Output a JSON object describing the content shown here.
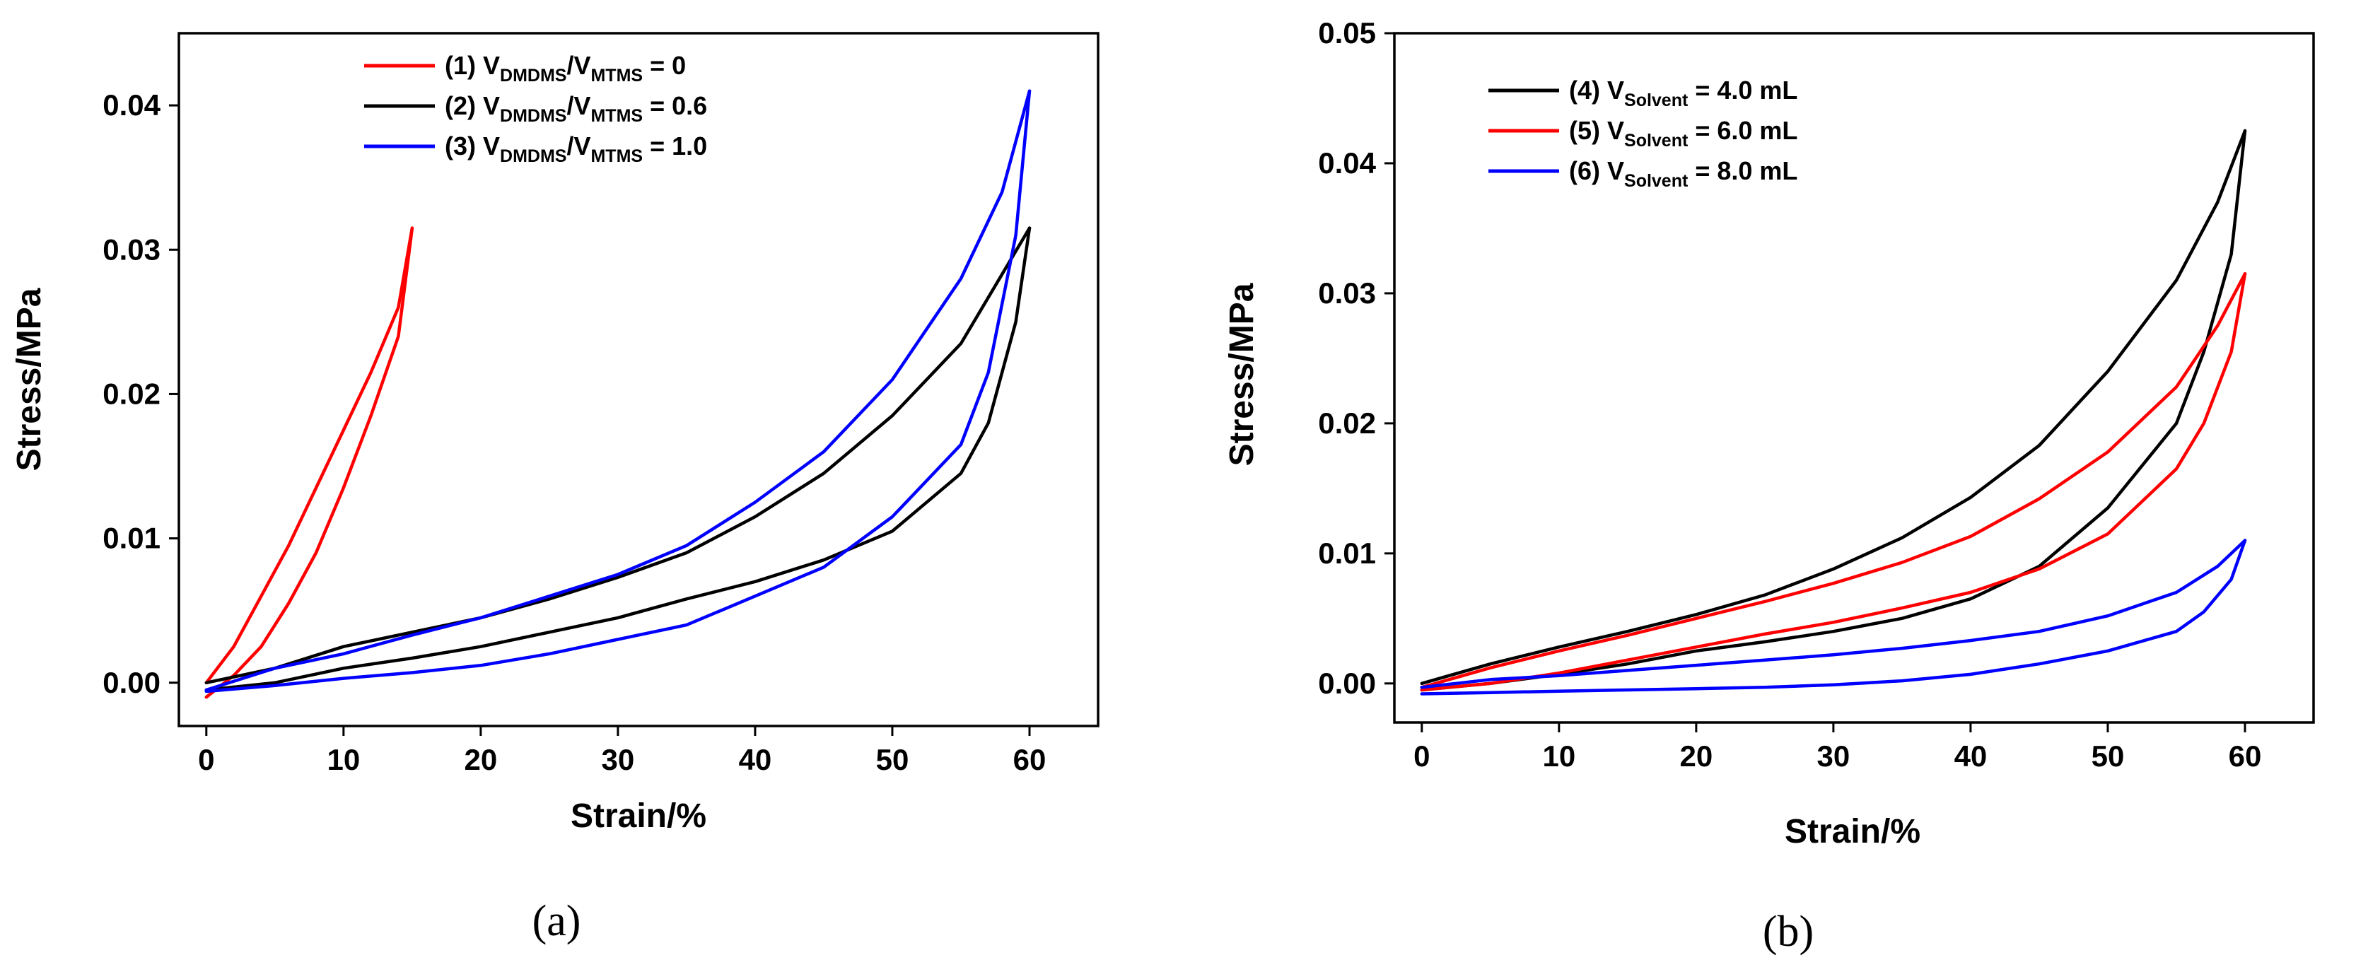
{
  "chart_data": [
    {
      "type": "line",
      "panel_label": "(a)",
      "xlabel": "Strain/%",
      "ylabel": "Stress/MPa",
      "xlim": [
        -2,
        65
      ],
      "ylim": [
        -0.003,
        0.045
      ],
      "xticks": [
        "0",
        "10",
        "20",
        "30",
        "40",
        "50",
        "60"
      ],
      "yticks": [
        "0.00",
        "0.01",
        "0.02",
        "0.03",
        "0.04"
      ],
      "legend_position": "top-center",
      "series": [
        {
          "id": "1",
          "color": "#ff0000",
          "legend": {
            "prefix": "(1) V",
            "sub1": "DMDMS",
            "mid": "/V",
            "sub2": "MTMS",
            "suffix": " = 0"
          },
          "loading": {
            "x": [
              0,
              2,
              4,
              6,
              8,
              10,
              12,
              14,
              15
            ],
            "y": [
              0.0,
              0.0025,
              0.006,
              0.0095,
              0.0135,
              0.0175,
              0.0215,
              0.026,
              0.0315
            ]
          },
          "unloading": {
            "x": [
              15,
              14,
              12,
              10,
              8,
              6,
              4,
              2,
              0
            ],
            "y": [
              0.0315,
              0.024,
              0.0185,
              0.0135,
              0.009,
              0.0055,
              0.0025,
              0.0005,
              -0.001
            ]
          }
        },
        {
          "id": "2",
          "color": "#000000",
          "legend": {
            "prefix": "(2) V",
            "sub1": "DMDMS",
            "mid": "/V",
            "sub2": "MTMS",
            "suffix": " = 0.6"
          },
          "loading": {
            "x": [
              0,
              5,
              10,
              15,
              20,
              25,
              30,
              35,
              40,
              45,
              50,
              55,
              60
            ],
            "y": [
              0.0,
              0.001,
              0.0025,
              0.0035,
              0.0045,
              0.0058,
              0.0073,
              0.009,
              0.0115,
              0.0145,
              0.0185,
              0.0235,
              0.0315
            ]
          },
          "unloading": {
            "x": [
              60,
              59,
              57,
              55,
              50,
              45,
              40,
              35,
              30,
              25,
              20,
              15,
              10,
              5,
              0
            ],
            "y": [
              0.0315,
              0.025,
              0.018,
              0.0145,
              0.0105,
              0.0085,
              0.007,
              0.0058,
              0.0045,
              0.0035,
              0.0025,
              0.0017,
              0.001,
              0.0,
              -0.0005
            ]
          }
        },
        {
          "id": "3",
          "color": "#0000ff",
          "legend": {
            "prefix": "(3) V",
            "sub1": "DMDMS",
            "mid": "/V",
            "sub2": "MTMS",
            "suffix": " = 1.0"
          },
          "loading": {
            "x": [
              0,
              5,
              10,
              15,
              20,
              25,
              30,
              35,
              40,
              45,
              50,
              55,
              58,
              60
            ],
            "y": [
              -0.0005,
              0.001,
              0.002,
              0.0033,
              0.0045,
              0.006,
              0.0075,
              0.0095,
              0.0125,
              0.016,
              0.021,
              0.028,
              0.034,
              0.041
            ]
          },
          "unloading": {
            "x": [
              60,
              59,
              57,
              55,
              50,
              45,
              40,
              35,
              30,
              25,
              20,
              15,
              10,
              5,
              0
            ],
            "y": [
              0.041,
              0.031,
              0.0215,
              0.0165,
              0.0115,
              0.008,
              0.006,
              0.004,
              0.003,
              0.002,
              0.0012,
              0.0007,
              0.0003,
              -0.0002,
              -0.0006
            ]
          }
        }
      ]
    },
    {
      "type": "line",
      "panel_label": "(b)",
      "xlabel": "Strain/%",
      "ylabel": "Stress/MPa",
      "xlim": [
        -2,
        65
      ],
      "ylim": [
        -0.003,
        0.05
      ],
      "xticks": [
        "0",
        "10",
        "20",
        "30",
        "40",
        "50",
        "60"
      ],
      "yticks": [
        "0.00",
        "0.01",
        "0.02",
        "0.03",
        "0.04",
        "0.05"
      ],
      "legend_position": "top-center",
      "series": [
        {
          "id": "4",
          "color": "#000000",
          "legend": {
            "prefix": "(4) V",
            "sub1": "Solvent",
            "mid": "",
            "sub2": "",
            "suffix": " = 4.0 mL"
          },
          "loading": {
            "x": [
              0,
              5,
              10,
              15,
              20,
              25,
              30,
              35,
              40,
              45,
              50,
              55,
              58,
              60
            ],
            "y": [
              0.0,
              0.0015,
              0.0028,
              0.004,
              0.0053,
              0.0068,
              0.0088,
              0.0112,
              0.0143,
              0.0183,
              0.024,
              0.031,
              0.037,
              0.0425
            ]
          },
          "unloading": {
            "x": [
              60,
              59,
              57,
              55,
              50,
              45,
              40,
              35,
              30,
              25,
              20,
              15,
              10,
              5,
              0
            ],
            "y": [
              0.0425,
              0.033,
              0.0255,
              0.02,
              0.0135,
              0.009,
              0.0065,
              0.005,
              0.004,
              0.0032,
              0.0025,
              0.0015,
              0.0007,
              0.0,
              -0.0005
            ]
          }
        },
        {
          "id": "5",
          "color": "#ff0000",
          "legend": {
            "prefix": "(5) V",
            "sub1": "Solvent",
            "mid": "",
            "sub2": "",
            "suffix": " = 6.0 mL"
          },
          "loading": {
            "x": [
              0,
              5,
              10,
              15,
              20,
              25,
              30,
              35,
              40,
              45,
              50,
              55,
              58,
              60
            ],
            "y": [
              -0.0003,
              0.0012,
              0.0025,
              0.0037,
              0.005,
              0.0063,
              0.0077,
              0.0093,
              0.0113,
              0.0142,
              0.0178,
              0.0228,
              0.0275,
              0.0315
            ]
          },
          "unloading": {
            "x": [
              60,
              59,
              57,
              55,
              50,
              45,
              40,
              35,
              30,
              25,
              20,
              15,
              10,
              5,
              0
            ],
            "y": [
              0.0315,
              0.0255,
              0.02,
              0.0165,
              0.0115,
              0.0088,
              0.007,
              0.0058,
              0.0047,
              0.0038,
              0.0028,
              0.0018,
              0.0008,
              0.0,
              -0.0005
            ]
          }
        },
        {
          "id": "6",
          "color": "#0000ff",
          "legend": {
            "prefix": "(6) V",
            "sub1": "Solvent",
            "mid": "",
            "sub2": "",
            "suffix": " = 8.0 mL"
          },
          "loading": {
            "x": [
              0,
              5,
              10,
              15,
              20,
              25,
              30,
              35,
              40,
              45,
              50,
              55,
              58,
              60
            ],
            "y": [
              -0.0003,
              0.0003,
              0.0006,
              0.001,
              0.0014,
              0.0018,
              0.0022,
              0.0027,
              0.0033,
              0.004,
              0.0052,
              0.007,
              0.009,
              0.011
            ]
          },
          "unloading": {
            "x": [
              60,
              59,
              57,
              55,
              50,
              45,
              40,
              35,
              30,
              25,
              20,
              15,
              10,
              5,
              0
            ],
            "y": [
              0.011,
              0.008,
              0.0055,
              0.004,
              0.0025,
              0.0015,
              0.0007,
              0.0002,
              -0.0001,
              -0.0003,
              -0.0004,
              -0.0005,
              -0.0006,
              -0.0007,
              -0.0008
            ]
          }
        }
      ]
    }
  ]
}
